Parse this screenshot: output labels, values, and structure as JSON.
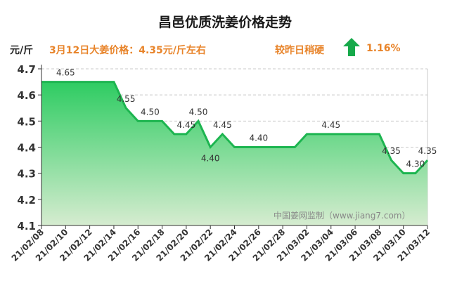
{
  "header": {
    "title": "昌邑优质洗姜价格走势",
    "unit": "元/斤",
    "price_note": "3月12日大姜价格：4.35元/斤左右",
    "trend_label": "较昨日稍硬",
    "trend_pct": "1.16%",
    "trend_icon": "up-arrow-icon"
  },
  "colors": {
    "line": "#1db550",
    "area_top": "#2ecc62",
    "area_bottom": "#d6ecd0",
    "accent_text": "#e8842a",
    "arrow": "#16a94a"
  },
  "chart_data": {
    "type": "area",
    "title": "昌邑优质洗姜价格走势",
    "ylabel": "元/斤",
    "ylim": [
      4.1,
      4.7
    ],
    "yticks": [
      "4.1",
      "4.2",
      "4.3",
      "4.4",
      "4.5",
      "4.6",
      "4.7"
    ],
    "grid": true,
    "watermark": "中国姜网监制（www.jiang7.com）",
    "x": [
      "21/02/08",
      "21/02/09",
      "21/02/10",
      "21/02/11",
      "21/02/12",
      "21/02/13",
      "21/02/14",
      "21/02/15",
      "21/02/16",
      "21/02/17",
      "21/02/18",
      "21/02/19",
      "21/02/20",
      "21/02/21",
      "21/02/22",
      "21/02/23",
      "21/02/24",
      "21/02/25",
      "21/02/26",
      "21/02/27",
      "21/02/28",
      "21/03/01",
      "21/03/02",
      "21/03/03",
      "21/03/04",
      "21/03/05",
      "21/03/06",
      "21/03/07",
      "21/03/08",
      "21/03/09",
      "21/03/10",
      "21/03/11",
      "21/03/12"
    ],
    "xtick_labels": [
      "21/02/08",
      "21/02/10",
      "21/02/12",
      "21/02/14",
      "21/02/16",
      "21/02/18",
      "21/02/20",
      "21/02/22",
      "21/02/24",
      "21/02/26",
      "21/02/28",
      "21/03/02",
      "21/03/04",
      "21/03/06",
      "21/03/08",
      "21/03/10",
      "21/03/12"
    ],
    "values": [
      4.65,
      4.65,
      4.65,
      4.65,
      4.65,
      4.65,
      4.65,
      4.55,
      4.5,
      4.5,
      4.5,
      4.45,
      4.45,
      4.5,
      4.4,
      4.45,
      4.4,
      4.4,
      4.4,
      4.4,
      4.4,
      4.4,
      4.45,
      4.45,
      4.45,
      4.45,
      4.45,
      4.45,
      4.45,
      4.35,
      4.3,
      4.3,
      4.35
    ],
    "data_labels": [
      {
        "x": "21/02/10",
        "text": "4.65"
      },
      {
        "x": "21/02/15",
        "text": "4.55"
      },
      {
        "x": "21/02/17",
        "text": "4.50"
      },
      {
        "x": "21/02/20",
        "text": "4.45"
      },
      {
        "x": "21/02/21",
        "text": "4.50"
      },
      {
        "x": "21/02/22",
        "text": "4.40"
      },
      {
        "x": "21/02/23",
        "text": "4.45"
      },
      {
        "x": "21/02/26",
        "text": "4.40"
      },
      {
        "x": "21/03/04",
        "text": "4.45"
      },
      {
        "x": "21/03/09",
        "text": "4.35"
      },
      {
        "x": "21/03/11",
        "text": "4.30"
      },
      {
        "x": "21/03/12",
        "text": "4.35"
      }
    ]
  }
}
